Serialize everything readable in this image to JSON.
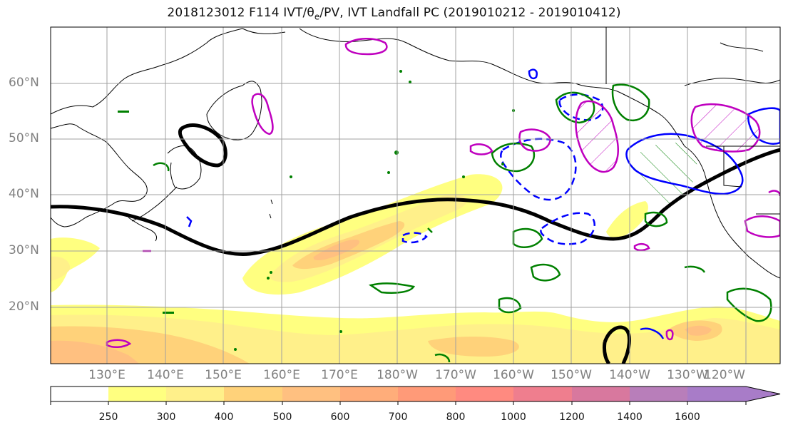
{
  "title": {
    "text_a": "2018123012 F114 IVT/θ",
    "text_sub": "e",
    "text_b": "/PV, IVT Landfall PC (2019010212 - 2019010412)"
  },
  "map": {
    "lat_labels": [
      "60°N",
      "50°N",
      "40°N",
      "30°N",
      "20°N"
    ],
    "lon_labels": [
      "130°E",
      "140°E",
      "150°E",
      "160°E",
      "170°E",
      "180°W",
      "170°W",
      "160°W",
      "150°W",
      "140°W",
      "130°W",
      "120°W"
    ]
  },
  "colorbar": {
    "ticks": [
      "250",
      "300",
      "400",
      "500",
      "600",
      "700",
      "800",
      "1000",
      "1200",
      "1400",
      "1600"
    ],
    "colors": [
      "#ffffff",
      "#ffff80",
      "#fff08a",
      "#ffd27a",
      "#ffc080",
      "#ffad7a",
      "#ff9a78",
      "#ff8a80",
      "#ef7e8e",
      "#d8789e",
      "#b87eba",
      "#a87cc8"
    ]
  },
  "colors": {
    "pv_contour": "#000000",
    "blue_contour": "#0000ff",
    "green_contour": "#008000",
    "magenta_contour": "#bf00bf"
  }
}
